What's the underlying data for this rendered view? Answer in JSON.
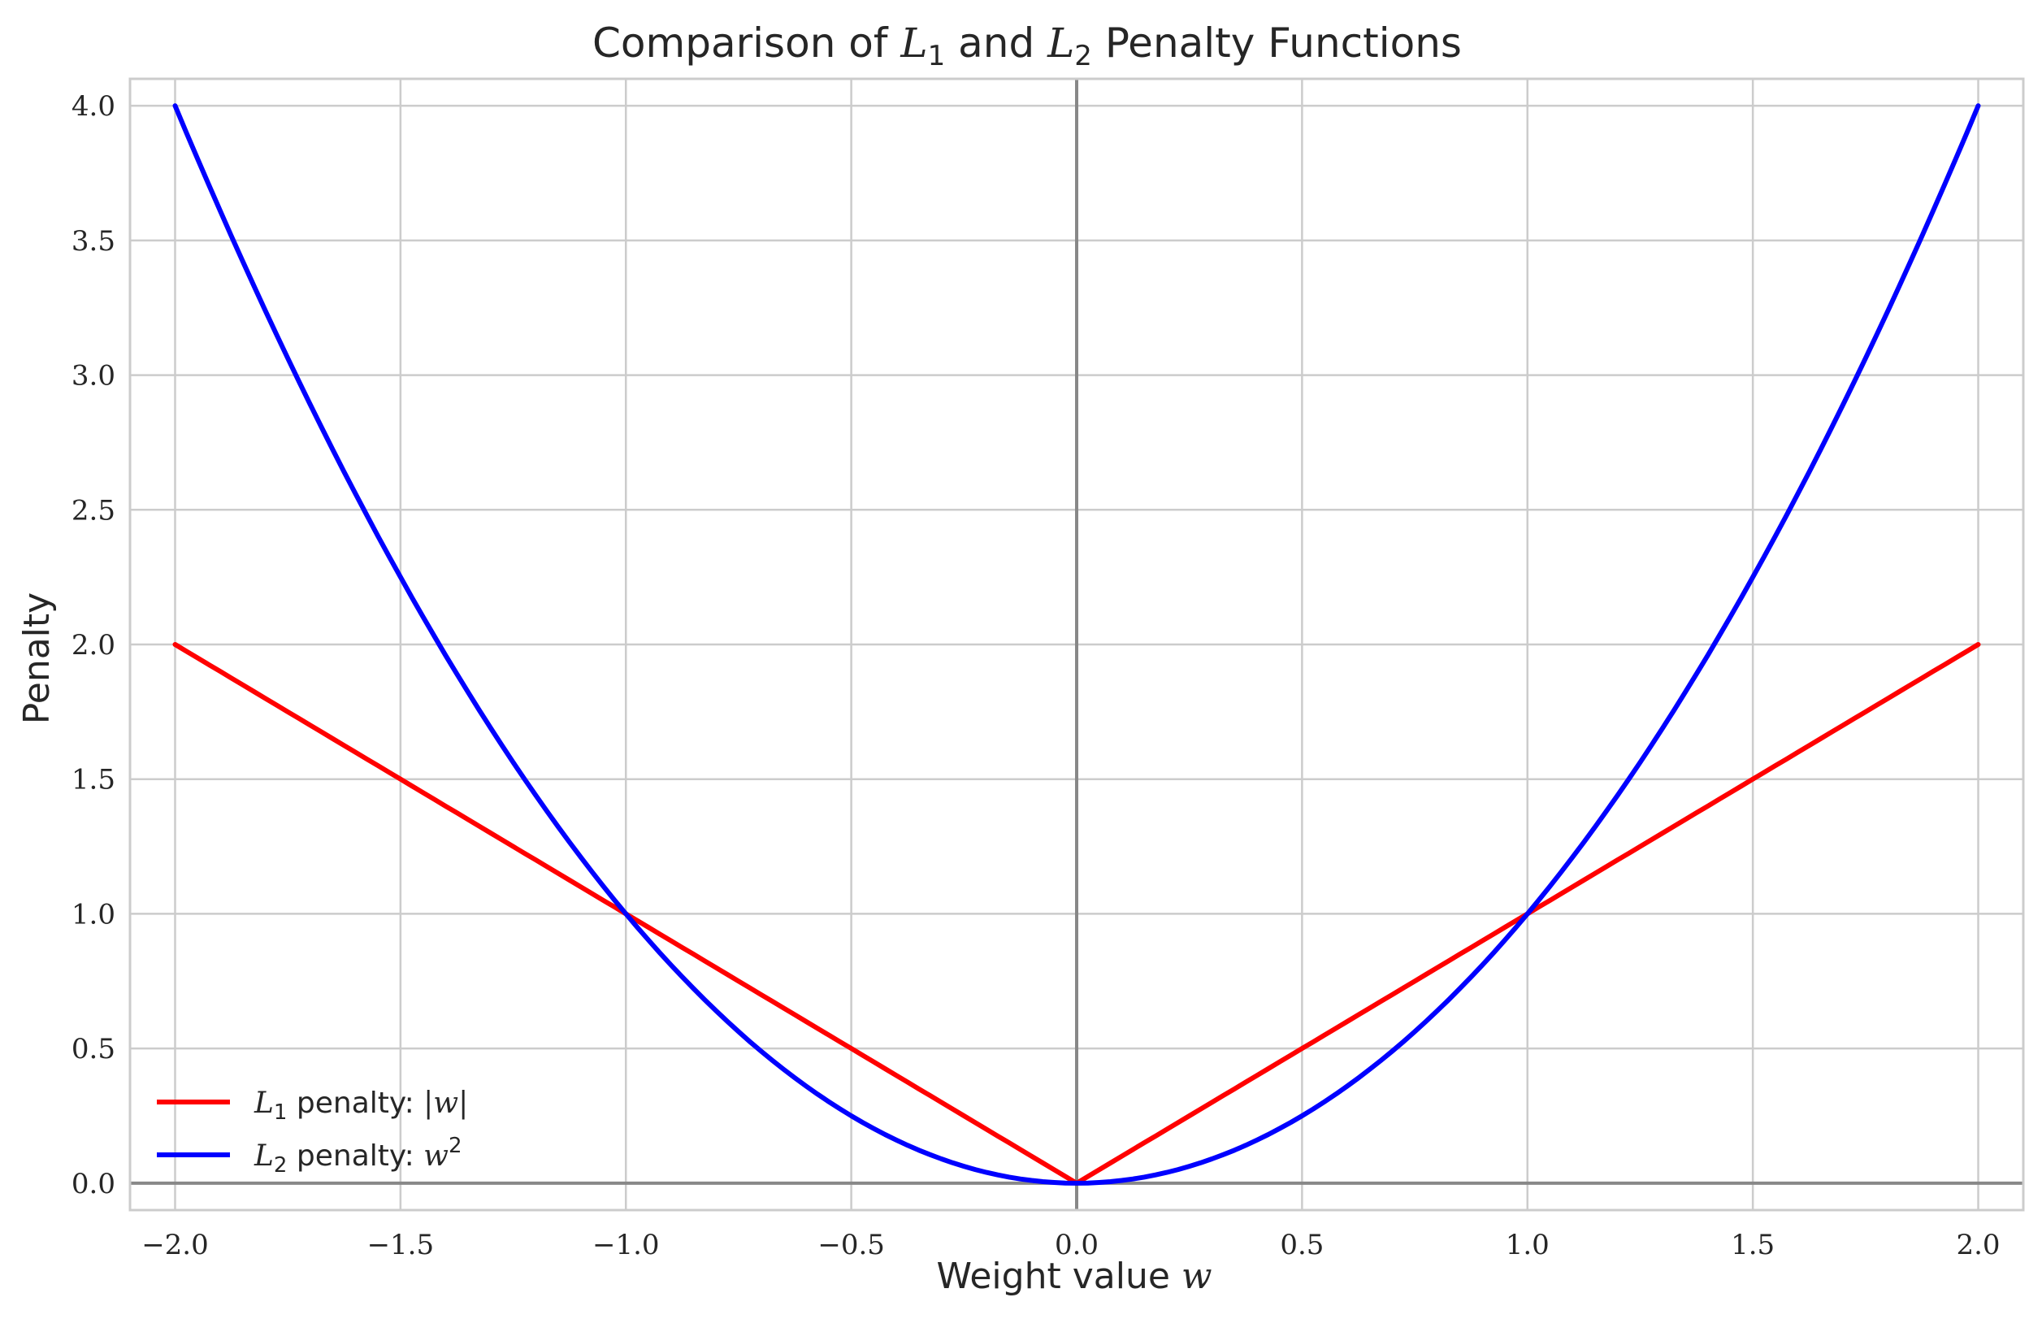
{
  "chart_data": {
    "type": "line",
    "title": "Comparison of L1 and L2 Penalty Functions",
    "title_parts": {
      "prefix": "Comparison of ",
      "l1_base": "L",
      "l1_sub": "1",
      "middle": " and ",
      "l2_base": "L",
      "l2_sub": "2",
      "suffix": " Penalty Functions"
    },
    "xlabel": "Weight value w",
    "xlabel_parts": {
      "text": "Weight value ",
      "math": "w"
    },
    "ylabel": "Penalty",
    "xlim": [
      -2.1,
      2.1
    ],
    "ylim": [
      -0.1,
      4.1
    ],
    "xticks": [
      -2.0,
      -1.5,
      -1.0,
      -0.5,
      0.0,
      0.5,
      1.0,
      1.5,
      2.0
    ],
    "xtick_labels": [
      "−2.0",
      "−1.5",
      "−1.0",
      "−0.5",
      "0.0",
      "0.5",
      "1.0",
      "1.5",
      "2.0"
    ],
    "yticks": [
      0.0,
      0.5,
      1.0,
      1.5,
      2.0,
      2.5,
      3.0,
      3.5,
      4.0
    ],
    "ytick_labels": [
      "0.0",
      "0.5",
      "1.0",
      "1.5",
      "2.0",
      "2.5",
      "3.0",
      "3.5",
      "4.0"
    ],
    "grid": true,
    "reference_lines": {
      "x": 0,
      "y": 0
    },
    "legend_position": "lower-left",
    "x": [
      -2.0,
      -1.75,
      -1.5,
      -1.25,
      -1.0,
      -0.75,
      -0.5,
      -0.25,
      0.0,
      0.25,
      0.5,
      0.75,
      1.0,
      1.25,
      1.5,
      1.75,
      2.0
    ],
    "series": [
      {
        "name": "L1 penalty: |w|",
        "legend_parts": {
          "base": "L",
          "sub": "1",
          "text": " penalty: ",
          "math": "|w|"
        },
        "color": "#ff0000",
        "values": [
          2.0,
          1.75,
          1.5,
          1.25,
          1.0,
          0.75,
          0.5,
          0.25,
          0.0,
          0.25,
          0.5,
          0.75,
          1.0,
          1.25,
          1.5,
          1.75,
          2.0
        ]
      },
      {
        "name": "L2 penalty: w^2",
        "legend_parts": {
          "base": "L",
          "sub": "2",
          "text": " penalty: ",
          "math": "w",
          "sup": "2"
        },
        "color": "#0000ff",
        "values": [
          4.0,
          3.0625,
          2.25,
          1.5625,
          1.0,
          0.5625,
          0.25,
          0.0625,
          0.0,
          0.0625,
          0.25,
          0.5625,
          1.0,
          1.5625,
          2.25,
          3.0625,
          4.0
        ]
      }
    ],
    "colors": {
      "grid": "#cccccc",
      "reference": "#888888",
      "spine": "#cccccc"
    }
  }
}
